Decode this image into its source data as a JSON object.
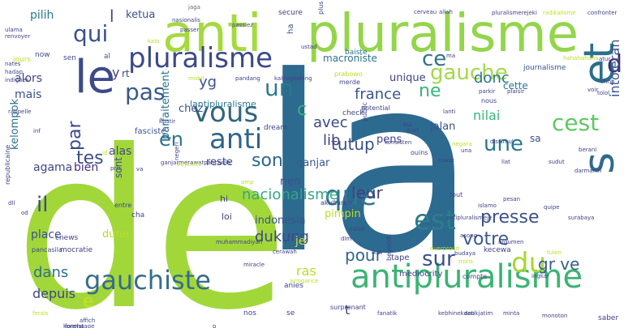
{
  "background": "#ffffff",
  "words": [
    {
      "text": "de",
      "color": "#a2d73a",
      "size": 270,
      "rot": 0
    },
    {
      "text": "la",
      "color": "#2c6a90",
      "size": 300,
      "rot": 0
    },
    {
      "text": "anti",
      "color": "#a5da3f",
      "size": 64,
      "rot": 0
    },
    {
      "text": "pluralisme",
      "color": "#94d54a",
      "size": 64,
      "rot": 0
    },
    {
      "text": "le",
      "color": "#3d4b89",
      "size": 56,
      "rot": 0
    },
    {
      "text": "et",
      "color": "#2a6f8c",
      "size": 52,
      "rot": -90
    },
    {
      "text": "s",
      "color": "#2f6a8e",
      "size": 52,
      "rot": -90
    },
    {
      "text": "antipluralisme",
      "color": "#3bb474",
      "size": 40,
      "rot": 0
    },
    {
      "text": "pluralisme",
      "color": "#3a4a89",
      "size": 34,
      "rot": 0
    },
    {
      "text": "vous",
      "color": "#31677e",
      "size": 34,
      "rot": 0
    },
    {
      "text": "anti",
      "color": "#30648b",
      "size": 34,
      "rot": 0
    },
    {
      "text": "que",
      "color": "#31768e",
      "size": 34,
      "rot": 0
    },
    {
      "text": "est",
      "color": "#2d7d8b",
      "size": 34,
      "rot": 0
    },
    {
      "text": "gauchiste",
      "color": "#376c8d",
      "size": 32,
      "rot": 0
    },
    {
      "text": "du",
      "color": "#a9d733",
      "size": 34,
      "rot": 0
    },
    {
      "text": "qui",
      "color": "#3a528b",
      "size": 28,
      "rot": 0
    },
    {
      "text": "un",
      "color": "#2b798d",
      "size": 28,
      "rot": 0
    },
    {
      "text": "pas",
      "color": "#39588c",
      "size": 28,
      "rot": 0
    },
    {
      "text": "gauche",
      "color": "#a3d949",
      "size": 26,
      "rot": 0
    },
    {
      "text": "ce",
      "color": "#30728a",
      "size": 26,
      "rot": 0
    },
    {
      "text": "d",
      "color": "#3f2d72",
      "size": 30,
      "rot": 0
    },
    {
      "text": "une",
      "color": "#277a8d",
      "size": 26,
      "rot": 0
    },
    {
      "text": "cest",
      "color": "#5ec962",
      "size": 28,
      "rot": 0
    },
    {
      "text": "il",
      "color": "#3e4a89",
      "size": 26,
      "rot": 0
    },
    {
      "text": "son",
      "color": "#30678d",
      "size": 22,
      "rot": 0
    },
    {
      "text": "tes",
      "color": "#3c4f8a",
      "size": 22,
      "rot": 0
    },
    {
      "text": "en",
      "color": "#2a768e",
      "size": 24,
      "rot": 0
    },
    {
      "text": "tutup",
      "color": "#3a4f89",
      "size": 20,
      "rot": 0
    },
    {
      "text": "par",
      "color": "#3c4a88",
      "size": 22,
      "rot": -90
    },
    {
      "text": "ne",
      "color": "#35b779",
      "size": 22,
      "rot": 0
    },
    {
      "text": "sur",
      "color": "#3b518b",
      "size": 26,
      "rot": 0
    },
    {
      "text": "pour",
      "color": "#33638d",
      "size": 20,
      "rot": 0
    },
    {
      "text": "presse",
      "color": "#3b5288",
      "size": 22,
      "rot": 0
    },
    {
      "text": "votre",
      "color": "#38598c",
      "size": 22,
      "rot": 0
    },
    {
      "text": "leur",
      "color": "#433e85",
      "size": 20,
      "rot": 0
    },
    {
      "text": "nacionalisme",
      "color": "#33a784",
      "size": 18,
      "rot": 0
    },
    {
      "text": "dukung",
      "color": "#3f4889",
      "size": 18,
      "rot": 0
    },
    {
      "text": "gr ve",
      "color": "#365d8d",
      "size": 20,
      "rot": 0
    },
    {
      "text": "dans",
      "color": "#2d708e",
      "size": 18,
      "rot": 0
    },
    {
      "text": "depuis",
      "color": "#3f4788",
      "size": 16,
      "rot": 0
    },
    {
      "text": "e",
      "color": "#c8e020",
      "size": 22,
      "rot": 0
    },
    {
      "text": "c",
      "color": "#2fb47c",
      "size": 22,
      "rot": 0
    },
    {
      "text": "avec",
      "color": "#3e4989",
      "size": 18,
      "rot": 0
    },
    {
      "text": "lib",
      "color": "#423f85",
      "size": 18,
      "rot": 0
    },
    {
      "text": "yg",
      "color": "#3b528b",
      "size": 18,
      "rot": 0
    },
    {
      "text": "france",
      "color": "#3a548c",
      "size": 18,
      "rot": 0
    },
    {
      "text": "donc",
      "color": "#2b758e",
      "size": 18,
      "rot": 0
    },
    {
      "text": "intoleran",
      "color": "#3a538b",
      "size": 16,
      "rot": -90
    },
    {
      "text": "nilai",
      "color": "#35b779",
      "size": 16,
      "rot": 0
    },
    {
      "text": "ras",
      "color": "#b5de2b",
      "size": 16,
      "rot": 0
    },
    {
      "text": "mais",
      "color": "#3b528b",
      "size": 14,
      "rot": 0
    },
    {
      "text": "alors",
      "color": "#404387",
      "size": 14,
      "rot": 0
    },
    {
      "text": "pilih",
      "color": "#2a788e",
      "size": 14,
      "rot": 0
    },
    {
      "text": "ketua",
      "color": "#3b518b",
      "size": 13,
      "rot": 0
    },
    {
      "text": "l",
      "color": "#3f4a8a",
      "size": 20,
      "rot": 0
    },
    {
      "text": "agama",
      "color": "#3f4889",
      "size": 14,
      "rot": 0
    },
    {
      "text": "bien",
      "color": "#46307e",
      "size": 14,
      "rot": 0
    },
    {
      "text": "alas",
      "color": "#3e4c8a",
      "size": 14,
      "rot": 0
    },
    {
      "text": "kelompok",
      "color": "#2d708e",
      "size": 13,
      "rot": -90
    },
    {
      "text": "place",
      "color": "#3b518b",
      "size": 14,
      "rot": 0
    },
    {
      "text": "dune",
      "color": "#b8de29",
      "size": 13,
      "rot": 0
    },
    {
      "text": "sont",
      "color": "#3b528b",
      "size": 12,
      "rot": -90
    },
    {
      "text": "parfaitement",
      "color": "#2c718e",
      "size": 13,
      "rot": -90
    },
    {
      "text": "reste",
      "color": "#3e4a89",
      "size": 13,
      "rot": 0
    },
    {
      "text": "rien",
      "color": "#3b518b",
      "size": 13,
      "rot": 0
    },
    {
      "text": "ganjar",
      "color": "#38598c",
      "size": 13,
      "rot": 0
    },
    {
      "text": "pimpin",
      "color": "#bade28",
      "size": 13,
      "rot": 0
    },
    {
      "text": "indonesia",
      "color": "#3a538b",
      "size": 13,
      "rot": 0
    },
    {
      "text": "je",
      "color": "#d2e21b",
      "size": 14,
      "rot": 0
    },
    {
      "text": "pens",
      "color": "#404588",
      "size": 13,
      "rot": 0
    },
    {
      "text": "jalan",
      "color": "#3b528b",
      "size": 13,
      "rot": 0
    },
    {
      "text": "unique",
      "color": "#404387",
      "size": 13,
      "rot": 0
    },
    {
      "text": "chez",
      "color": "#3b518b",
      "size": 13,
      "rot": 0
    },
    {
      "text": "lantipluralisme",
      "color": "#2a788e",
      "size": 11,
      "rot": 0
    },
    {
      "text": "cette",
      "color": "#2c728e",
      "size": 12,
      "rot": 0
    },
    {
      "text": "sa",
      "color": "#3b528b",
      "size": 12,
      "rot": 0
    },
    {
      "text": "rt",
      "color": "#3e4989",
      "size": 12,
      "rot": 0
    },
    {
      "text": "y",
      "color": "#443a83",
      "size": 16,
      "rot": 0
    },
    {
      "text": "macroniste",
      "color": "#2c728e",
      "size": 12,
      "rot": 0
    },
    {
      "text": "journalisme",
      "color": "#3a538b",
      "size": 9,
      "rot": 0
    },
    {
      "text": "secure",
      "color": "#404387",
      "size": 9,
      "rot": 0
    },
    {
      "text": "ha",
      "color": "#3b528b",
      "size": 10,
      "rot": -90
    },
    {
      "text": "baiste",
      "color": "#2c728e",
      "size": 9,
      "rot": 0
    },
    {
      "text": "now",
      "color": "#3e4a89",
      "size": 9,
      "rot": 0
    },
    {
      "text": "sen",
      "color": "#3e4a89",
      "size": 9,
      "rot": 0
    },
    {
      "text": "jours",
      "color": "#bddf26",
      "size": 9,
      "rot": 0
    },
    {
      "text": "al",
      "color": "#3b518b",
      "size": 9,
      "rot": 0
    },
    {
      "text": "nates",
      "color": "#404387",
      "size": 7,
      "rot": 0
    },
    {
      "text": "hadap",
      "color": "#404387",
      "size": 7,
      "rot": 0
    },
    {
      "text": "indignes",
      "color": "#404387",
      "size": 7,
      "rot": 0
    },
    {
      "text": "ulama",
      "color": "#404387",
      "size": 7,
      "rot": 0
    },
    {
      "text": "renvoyer",
      "color": "#404387",
      "size": 7,
      "rot": 0
    },
    {
      "text": "jaga",
      "color": "#6b6b6b",
      "size": 7,
      "rot": 0
    },
    {
      "text": "nasionalis",
      "color": "#404387",
      "size": 7,
      "rot": 0
    },
    {
      "text": "passer",
      "color": "#404387",
      "size": 7,
      "rot": 0
    },
    {
      "text": "kalo",
      "color": "#bddf26",
      "size": 7,
      "rot": 0
    },
    {
      "text": "passiez",
      "color": "#404387",
      "size": 7,
      "rot": 0
    },
    {
      "text": "ustad",
      "color": "#404387",
      "size": 7,
      "rot": 0
    },
    {
      "text": "cerveau",
      "color": "#404387",
      "size": 7,
      "rot": 0
    },
    {
      "text": "allah",
      "color": "#404387",
      "size": 7,
      "rot": 0
    },
    {
      "text": "plus",
      "color": "#404387",
      "size": 8,
      "rot": -90
    },
    {
      "text": "pluralismerejeki",
      "color": "#404387",
      "size": 7,
      "rot": 0
    },
    {
      "text": "radikalisme",
      "color": "#bddf26",
      "size": 7,
      "rot": 0
    },
    {
      "text": "confronter",
      "color": "#404387",
      "size": 7,
      "rot": 0
    },
    {
      "text": "ma",
      "color": "#404387",
      "size": 7,
      "rot": 0
    },
    {
      "text": "hahahahaha",
      "color": "#bddf26",
      "size": 7,
      "rot": 0
    },
    {
      "text": "atur",
      "color": "#404387",
      "size": 7,
      "rot": 0
    },
    {
      "text": "ohhh",
      "color": "#404387",
      "size": 7,
      "rot": 0
    },
    {
      "text": "voir",
      "color": "#404387",
      "size": 7,
      "rot": 0
    },
    {
      "text": "tolol",
      "color": "#404387",
      "size": 7,
      "rot": 0
    },
    {
      "text": "mobil",
      "color": "#bddf26",
      "size": 7,
      "rot": 0
    },
    {
      "text": "pandang",
      "color": "#404387",
      "size": 7,
      "rot": 0
    },
    {
      "text": "kalengkaleng",
      "color": "#404387",
      "size": 7,
      "rot": 0
    },
    {
      "text": "prabowo",
      "color": "#b8de29",
      "size": 8,
      "rot": 0
    },
    {
      "text": "merde",
      "color": "#404387",
      "size": 8,
      "rot": 0
    },
    {
      "text": "potential",
      "color": "#404387",
      "size": 8,
      "rot": 0
    },
    {
      "text": "check",
      "color": "#404387",
      "size": 9,
      "rot": 0
    },
    {
      "text": "parkir",
      "color": "#404387",
      "size": 7,
      "rot": 0
    },
    {
      "text": "plaisir",
      "color": "#404387",
      "size": 7,
      "rot": 0
    },
    {
      "text": "nous",
      "color": "#404387",
      "size": 8,
      "rot": 0
    },
    {
      "text": "rappelle",
      "color": "#404387",
      "size": 7,
      "rot": 0
    },
    {
      "text": "inf",
      "color": "#404387",
      "size": 7,
      "rot": 0
    },
    {
      "text": "fasciste",
      "color": "#3b528b",
      "size": 10,
      "rot": 0
    },
    {
      "text": "kuatir",
      "color": "#404387",
      "size": 7,
      "rot": 0
    },
    {
      "text": "dream",
      "color": "#404387",
      "size": 9,
      "rot": 0
    },
    {
      "text": "public",
      "color": "#404387",
      "size": 8,
      "rot": -90
    },
    {
      "text": "au",
      "color": "#404387",
      "size": 9,
      "rot": 0
    },
    {
      "text": "lanti",
      "color": "#404387",
      "size": 7,
      "rot": 0
    },
    {
      "text": "part",
      "color": "#404387",
      "size": 7,
      "rot": 0
    },
    {
      "text": "konsisten",
      "color": "#404387",
      "size": 7,
      "rot": 0
    },
    {
      "text": "negara",
      "color": "#bddf26",
      "size": 7,
      "rot": 0
    },
    {
      "text": "id",
      "color": "#bddf26",
      "size": 7,
      "rot": 0
    },
    {
      "text": "ganjarmerawatpancasila",
      "color": "#404387",
      "size": 7,
      "rot": 0
    },
    {
      "text": "boycotte",
      "color": "#bddf26",
      "size": 7,
      "rot": 0
    },
    {
      "text": "una",
      "color": "#404387",
      "size": 7,
      "rot": 0
    },
    {
      "text": "berani",
      "color": "#404387",
      "size": 7,
      "rot": 0
    },
    {
      "text": "dissimul",
      "color": "#404387",
      "size": 7,
      "rot": 0
    },
    {
      "text": "pris",
      "color": "#404387",
      "size": 7,
      "rot": 0
    },
    {
      "text": "va",
      "color": "#404387",
      "size": 7,
      "rot": 0
    },
    {
      "text": "negeri",
      "color": "#404387",
      "size": 7,
      "rot": -90
    },
    {
      "text": "ouins",
      "color": "#404387",
      "size": 8,
      "rot": 0
    },
    {
      "text": "rawat",
      "color": "#404387",
      "size": 7,
      "rot": 0
    },
    {
      "text": "liat",
      "color": "#404387",
      "size": 7,
      "rot": 0
    },
    {
      "text": "sudut",
      "color": "#404387",
      "size": 7,
      "rot": 0
    },
    {
      "text": "darmanin",
      "color": "#404387",
      "size": 7,
      "rot": 0
    },
    {
      "text": "republicaine",
      "color": "#404387",
      "size": 8,
      "rot": -90
    },
    {
      "text": "dll",
      "color": "#404387",
      "size": 7,
      "rot": 0
    },
    {
      "text": "od",
      "color": "#404387",
      "size": 7,
      "rot": 0
    },
    {
      "text": "tout",
      "color": "#404387",
      "size": 8,
      "rot": 0
    },
    {
      "text": "islamo",
      "color": "#404387",
      "size": 7,
      "rot": 0
    },
    {
      "text": "pesan",
      "color": "#404387",
      "size": 7,
      "rot": 0
    },
    {
      "text": "hi",
      "color": "#404387",
      "size": 11,
      "rot": 0
    },
    {
      "text": "loi",
      "color": "#404387",
      "size": 11,
      "rot": 0
    },
    {
      "text": "amp",
      "color": "#bddf26",
      "size": 7,
      "rot": 0
    },
    {
      "text": "cha",
      "color": "#404387",
      "size": 9,
      "rot": 0
    },
    {
      "text": "entre",
      "color": "#404387",
      "size": 8,
      "rot": 0
    },
    {
      "text": "antipluralismeje",
      "color": "#404387",
      "size": 7,
      "rot": 0
    },
    {
      "text": "quipe",
      "color": "#404387",
      "size": 7,
      "rot": 0
    },
    {
      "text": "surabaya",
      "color": "#404387",
      "size": 7,
      "rot": 0
    },
    {
      "text": "pancasila",
      "color": "#404387",
      "size": 8,
      "rot": 0
    },
    {
      "text": "cnews",
      "color": "#404387",
      "size": 9,
      "rot": 0
    },
    {
      "text": "mocratie",
      "color": "#404387",
      "size": 9,
      "rot": 0
    },
    {
      "text": "akulturasi",
      "color": "#404387",
      "size": 8,
      "rot": 0
    },
    {
      "text": "salah",
      "color": "#404387",
      "size": 7,
      "rot": 0
    },
    {
      "text": "muhammadiyah",
      "color": "#404387",
      "size": 7,
      "rot": 0
    },
    {
      "text": "cerawah",
      "color": "#404387",
      "size": 7,
      "rot": 0
    },
    {
      "text": "ikat",
      "color": "#404387",
      "size": 7,
      "rot": 0
    },
    {
      "text": "miracle",
      "color": "#404387",
      "size": 7,
      "rot": 0
    },
    {
      "text": "dlm",
      "color": "#404387",
      "size": 7,
      "rot": 0
    },
    {
      "text": "overproud",
      "color": "#bddf26",
      "size": 7,
      "rot": 0
    },
    {
      "text": "asong",
      "color": "#404387",
      "size": 7,
      "rot": 0
    },
    {
      "text": "argumen",
      "color": "#404387",
      "size": 7,
      "rot": 0
    },
    {
      "text": "tulen",
      "color": "#bddf26",
      "size": 7,
      "rot": 0
    },
    {
      "text": "ingkar",
      "color": "#404387",
      "size": 7,
      "rot": 0
    },
    {
      "text": "kecewa",
      "color": "#404387",
      "size": 9,
      "rot": 0
    },
    {
      "text": "beyond",
      "color": "#404387",
      "size": 8,
      "rot": -90
    },
    {
      "text": "mediocrity",
      "color": "#404387",
      "size": 10,
      "rot": 0
    },
    {
      "text": "tape",
      "color": "#404387",
      "size": 10,
      "rot": 0
    },
    {
      "text": "trons",
      "color": "#bddf26",
      "size": 7,
      "rot": 0
    },
    {
      "text": "arrogance",
      "color": "#bddf26",
      "size": 7,
      "rot": 0
    },
    {
      "text": "compte",
      "color": "#404387",
      "size": 8,
      "rot": 0
    },
    {
      "text": "anies",
      "color": "#404387",
      "size": 9,
      "rot": 0
    },
    {
      "text": "nos",
      "color": "#404387",
      "size": 9,
      "rot": 0
    },
    {
      "text": "se",
      "color": "#404387",
      "size": 9,
      "rot": 0
    },
    {
      "text": "t",
      "color": "#404387",
      "size": 16,
      "rot": 0
    },
    {
      "text": "budaya",
      "color": "#404387",
      "size": 7,
      "rot": 0
    },
    {
      "text": "surprenant",
      "color": "#404387",
      "size": 8,
      "rot": 0
    },
    {
      "text": "fanatik",
      "color": "#404387",
      "size": 7,
      "rot": 0
    },
    {
      "text": "kebhinekaan",
      "color": "#404387",
      "size": 7,
      "rot": 0
    },
    {
      "text": "detikjatim",
      "color": "#404387",
      "size": 7,
      "rot": 0
    },
    {
      "text": "minta",
      "color": "#404387",
      "size": 7,
      "rot": 0
    },
    {
      "text": "monoton",
      "color": "#404387",
      "size": 7,
      "rot": 0
    },
    {
      "text": "saber",
      "color": "#404387",
      "size": 9,
      "rot": 0
    },
    {
      "text": "ferais",
      "color": "#bddf26",
      "size": 7,
      "rot": 0
    },
    {
      "text": "affich",
      "color": "#404387",
      "size": 7,
      "rot": 0
    },
    {
      "text": "konoha",
      "color": "#404387",
      "size": 7,
      "rot": 0
    },
    {
      "text": "formatage",
      "color": "#404387",
      "size": 7,
      "rot": 0
    },
    {
      "text": "p",
      "color": "#404387",
      "size": 7,
      "rot": 0
    }
  ]
}
